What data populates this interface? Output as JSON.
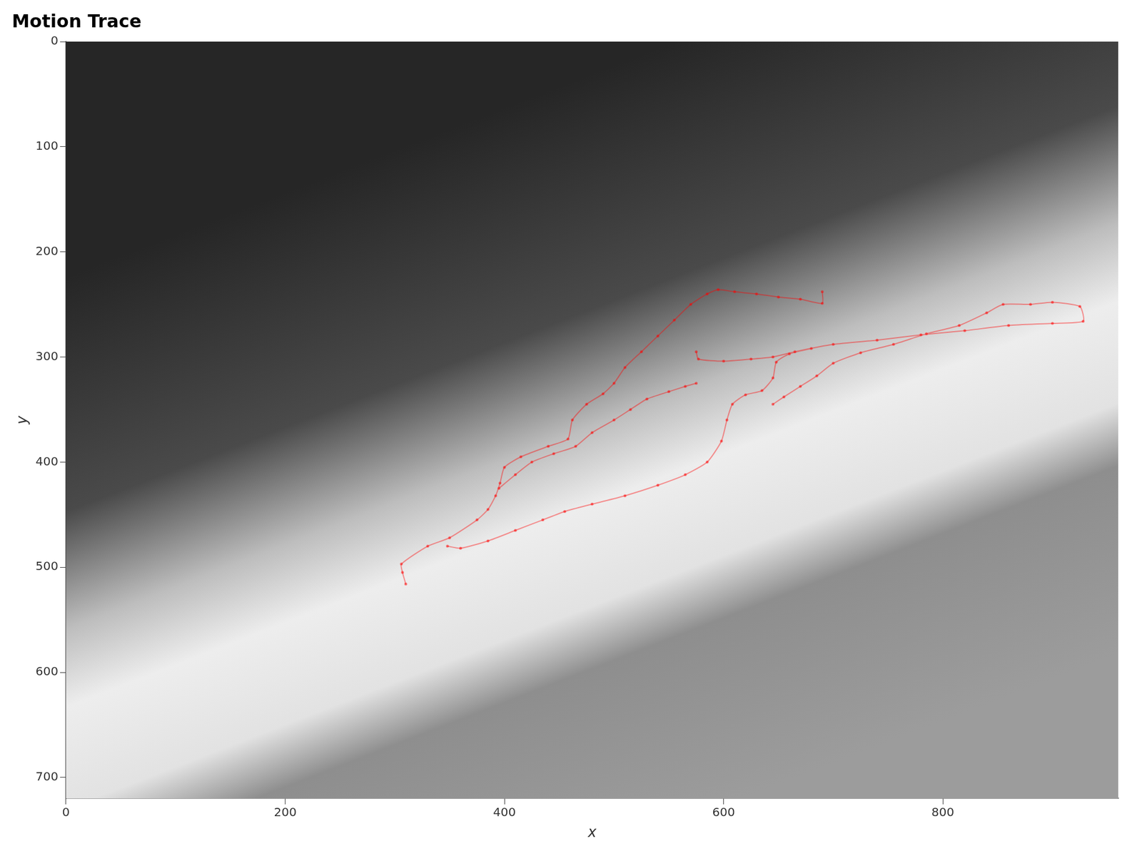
{
  "chart_data": {
    "type": "line",
    "title": "Motion Trace",
    "x_label": "x",
    "y_label": "y",
    "x": [
      310,
      307,
      306,
      330,
      350,
      375,
      385,
      392,
      396,
      400,
      415,
      440,
      458,
      462,
      475,
      490,
      500,
      510,
      525,
      540,
      555,
      570,
      585,
      595,
      610,
      630,
      650,
      670,
      690,
      690,
      690,
      395,
      410,
      425,
      445,
      465,
      480,
      500,
      515,
      530,
      550,
      565,
      575,
      575,
      348,
      360,
      385,
      410,
      435,
      455,
      480,
      510,
      540,
      565,
      585,
      598,
      603,
      608,
      620,
      635,
      645,
      648,
      660,
      680,
      680,
      575,
      577,
      600,
      625,
      645,
      665,
      700,
      740,
      780,
      820,
      860,
      900,
      928,
      925,
      900,
      880,
      855,
      840,
      815,
      785,
      755,
      725,
      700,
      685,
      670,
      655,
      645
    ],
    "values": [
      516,
      505,
      497,
      480,
      472,
      455,
      445,
      432,
      420,
      405,
      395,
      385,
      378,
      360,
      345,
      335,
      325,
      310,
      295,
      280,
      265,
      250,
      240,
      236,
      238,
      240,
      243,
      245,
      249,
      238,
      null,
      425,
      412,
      400,
      392,
      385,
      372,
      360,
      350,
      340,
      333,
      328,
      325,
      null,
      480,
      482,
      475,
      465,
      455,
      447,
      440,
      432,
      422,
      412,
      400,
      380,
      360,
      345,
      336,
      332,
      320,
      305,
      297,
      292,
      null,
      295,
      302,
      304,
      302,
      300,
      295,
      288,
      284,
      279,
      275,
      270,
      268,
      266,
      252,
      248,
      250,
      250,
      258,
      270,
      278,
      288,
      296,
      306,
      318,
      328,
      338,
      345
    ],
    "color": "#ff0000",
    "line_style": "solid",
    "xlim": [
      0,
      960
    ],
    "xticks": [
      0,
      200,
      400,
      600,
      800
    ],
    "ylim": [
      0,
      720
    ],
    "yticks": [
      0,
      100,
      200,
      300,
      400,
      500,
      600,
      700
    ],
    "grid": false
  }
}
